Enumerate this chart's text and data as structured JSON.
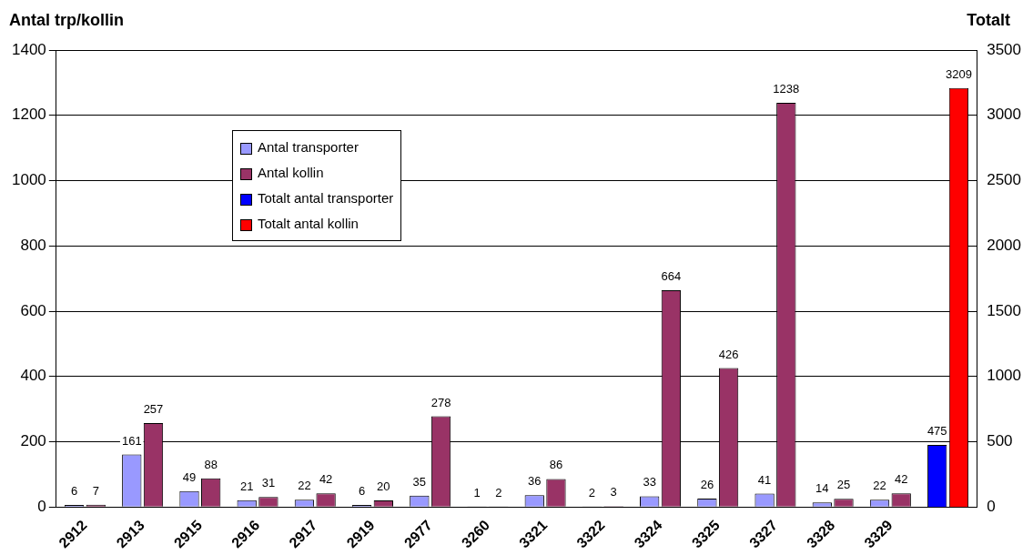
{
  "chart_data": {
    "type": "bar",
    "ylabel": "Antal trp/kollin",
    "y2label": "Totalt",
    "categories": [
      "2912",
      "2913",
      "2915",
      "2916",
      "2917",
      "2919",
      "2977",
      "3260",
      "3321",
      "3322",
      "3324",
      "3325",
      "3327",
      "3328",
      "3329",
      null
    ],
    "series": [
      {
        "name": "Antal transporter",
        "color": "#9999ff",
        "values": [
          6,
          161,
          49,
          21,
          22,
          6,
          35,
          1,
          36,
          2,
          33,
          26,
          41,
          14,
          22,
          null
        ]
      },
      {
        "name": "Antal kollin",
        "color": "#993366",
        "values": [
          7,
          257,
          88,
          31,
          42,
          20,
          278,
          2,
          86,
          3,
          664,
          426,
          1238,
          25,
          42,
          null
        ]
      },
      {
        "name": "Totalt antal transporter",
        "color": "#0000ff",
        "axis": "y2",
        "values": [
          null,
          null,
          null,
          null,
          null,
          null,
          null,
          null,
          null,
          null,
          null,
          null,
          null,
          null,
          null,
          475
        ]
      },
      {
        "name": "Totalt antal kollin",
        "color": "#ff0000",
        "axis": "y2",
        "values": [
          null,
          null,
          null,
          null,
          null,
          null,
          null,
          null,
          null,
          null,
          null,
          null,
          null,
          null,
          null,
          3209
        ]
      }
    ],
    "ylim": [
      0,
      1400
    ],
    "yticks": [
      0,
      200,
      400,
      600,
      800,
      1000,
      1200,
      1400
    ],
    "y2lim": [
      0,
      3500
    ],
    "y2ticks": [
      0,
      500,
      1000,
      1500,
      2000,
      2500,
      3000,
      3500
    ],
    "grid": "y",
    "legend": "top left",
    "data_labels": true
  }
}
